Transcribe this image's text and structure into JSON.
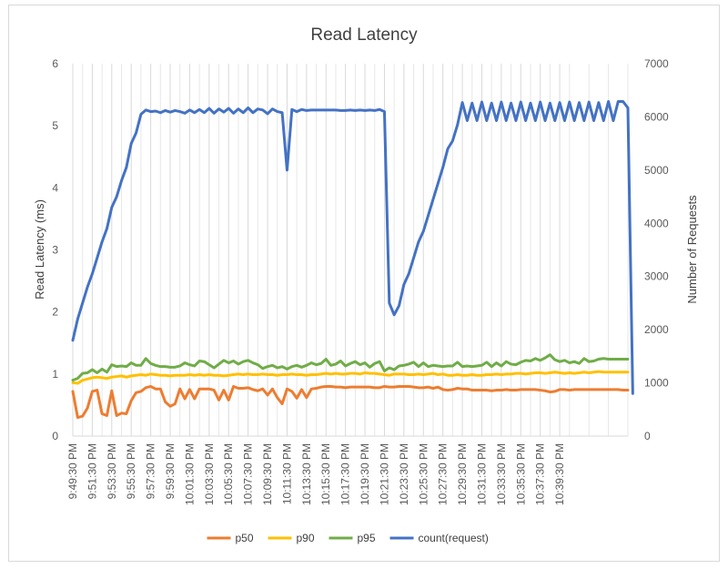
{
  "chart_data": {
    "type": "line",
    "title": "Read Latency",
    "y_label_left": "Read Latency (ms)",
    "y_label_right": "Number of Requests",
    "y_left_range": [
      0,
      6
    ],
    "y_left_ticks": [
      "0",
      "1",
      "2",
      "3",
      "4",
      "5",
      "6"
    ],
    "y_right_range": [
      0,
      7000
    ],
    "y_right_ticks": [
      "0",
      "1000",
      "2000",
      "3000",
      "4000",
      "5000",
      "6000",
      "7000"
    ],
    "x_tick_labels": [
      "9:49:30 PM",
      "9:51:30 PM",
      "9:53:30 PM",
      "9:55:30 PM",
      "9:57:30 PM",
      "9:59:30 PM",
      "10:01:30 PM",
      "10:03:30 PM",
      "10:05:30 PM",
      "10:07:30 PM",
      "10:09:30 PM",
      "10:11:30 PM",
      "10:13:30 PM",
      "10:15:30 PM",
      "10:17:30 PM",
      "10:19:30 PM",
      "10:21:30 PM",
      "10:23:30 PM",
      "10:25:30 PM",
      "10:27:30 PM",
      "10:29:30 PM",
      "10:31:30 PM",
      "10:33:30 PM",
      "10:35:30 PM",
      "10:37:30 PM",
      "10:39:30 PM"
    ],
    "x_interval_seconds": 30,
    "grid": "vertical",
    "legend_position": "bottom",
    "series": [
      {
        "name": "p50",
        "axis": "left",
        "color": "#ED7D31",
        "values": [
          0.72,
          0.3,
          0.32,
          0.45,
          0.72,
          0.74,
          0.36,
          0.33,
          0.73,
          0.33,
          0.37,
          0.36,
          0.57,
          0.7,
          0.72,
          0.78,
          0.8,
          0.76,
          0.76,
          0.55,
          0.48,
          0.52,
          0.76,
          0.6,
          0.75,
          0.6,
          0.76,
          0.76,
          0.76,
          0.74,
          0.58,
          0.74,
          0.58,
          0.8,
          0.77,
          0.77,
          0.78,
          0.75,
          0.73,
          0.76,
          0.66,
          0.76,
          0.62,
          0.52,
          0.76,
          0.72,
          0.61,
          0.75,
          0.62,
          0.76,
          0.77,
          0.79,
          0.8,
          0.8,
          0.79,
          0.79,
          0.78,
          0.79,
          0.79,
          0.79,
          0.79,
          0.79,
          0.78,
          0.78,
          0.8,
          0.79,
          0.79,
          0.8,
          0.8,
          0.8,
          0.79,
          0.78,
          0.78,
          0.79,
          0.77,
          0.79,
          0.75,
          0.74,
          0.75,
          0.77,
          0.76,
          0.76,
          0.74,
          0.74,
          0.74,
          0.74,
          0.73,
          0.74,
          0.74,
          0.75,
          0.74,
          0.74,
          0.75,
          0.75,
          0.75,
          0.75,
          0.74,
          0.73,
          0.71,
          0.72,
          0.75,
          0.75,
          0.74,
          0.75,
          0.75,
          0.75,
          0.75,
          0.75,
          0.75,
          0.75,
          0.75,
          0.75,
          0.75,
          0.74,
          0.74
        ]
      },
      {
        "name": "p90",
        "axis": "left",
        "color": "#FFC000",
        "values": [
          0.86,
          0.85,
          0.9,
          0.92,
          0.94,
          0.95,
          0.94,
          0.93,
          0.95,
          0.96,
          0.97,
          0.95,
          0.97,
          0.98,
          0.99,
          0.98,
          1.0,
          0.99,
          0.98,
          0.98,
          0.97,
          0.98,
          0.98,
          0.98,
          0.99,
          0.98,
          0.99,
          0.98,
          0.99,
          0.98,
          0.98,
          0.97,
          0.98,
          0.99,
          1.0,
          0.99,
          1.0,
          0.99,
          0.99,
          1.0,
          0.99,
          0.99,
          0.98,
          0.99,
          0.99,
          1.0,
          0.99,
          0.99,
          0.98,
          0.99,
          0.99,
          1.0,
          1.01,
          1.0,
          1.01,
          1.0,
          1.0,
          1.01,
          1.01,
          1.0,
          1.02,
          1.01,
          1.01,
          1.0,
          0.99,
          0.98,
          1.0,
          1.0,
          1.0,
          0.99,
          0.99,
          1.0,
          0.99,
          1.0,
          1.01,
          0.99,
          1.0,
          0.98,
          0.98,
          0.99,
          0.98,
          0.98,
          0.99,
          0.98,
          0.98,
          0.99,
          0.99,
          1.0,
          0.99,
          1.0,
          1.0,
          1.01,
          1.01,
          1.0,
          1.01,
          1.02,
          1.02,
          1.01,
          1.02,
          1.03,
          1.02,
          1.01,
          1.02,
          1.01,
          1.02,
          1.03,
          1.02,
          1.03,
          1.04,
          1.03,
          1.03,
          1.03,
          1.03,
          1.03,
          1.03
        ]
      },
      {
        "name": "p95",
        "axis": "left",
        "color": "#70AD47",
        "values": [
          0.9,
          0.93,
          1.01,
          1.02,
          1.07,
          1.02,
          1.08,
          1.03,
          1.15,
          1.12,
          1.13,
          1.12,
          1.18,
          1.14,
          1.14,
          1.25,
          1.17,
          1.14,
          1.12,
          1.12,
          1.11,
          1.11,
          1.13,
          1.18,
          1.15,
          1.13,
          1.21,
          1.2,
          1.15,
          1.1,
          1.16,
          1.22,
          1.18,
          1.21,
          1.16,
          1.2,
          1.22,
          1.18,
          1.15,
          1.09,
          1.12,
          1.14,
          1.1,
          1.12,
          1.08,
          1.12,
          1.14,
          1.11,
          1.14,
          1.18,
          1.15,
          1.17,
          1.24,
          1.14,
          1.16,
          1.21,
          1.13,
          1.17,
          1.2,
          1.15,
          1.18,
          1.11,
          1.17,
          1.2,
          1.05,
          1.1,
          1.07,
          1.13,
          1.14,
          1.16,
          1.19,
          1.12,
          1.18,
          1.12,
          1.14,
          1.13,
          1.12,
          1.13,
          1.13,
          1.19,
          1.12,
          1.13,
          1.12,
          1.13,
          1.14,
          1.19,
          1.12,
          1.18,
          1.13,
          1.2,
          1.16,
          1.15,
          1.19,
          1.22,
          1.21,
          1.25,
          1.22,
          1.26,
          1.31,
          1.23,
          1.2,
          1.22,
          1.18,
          1.2,
          1.17,
          1.25,
          1.2,
          1.21,
          1.24,
          1.25,
          1.24,
          1.24,
          1.24,
          1.24,
          1.24
        ]
      },
      {
        "name": "count(request)",
        "axis": "right",
        "color": "#4472C4",
        "values": [
          1800,
          2200,
          2500,
          2800,
          3050,
          3350,
          3650,
          3900,
          4300,
          4500,
          4800,
          5050,
          5500,
          5700,
          6050,
          6130,
          6100,
          6110,
          6080,
          6120,
          6090,
          6120,
          6100,
          6070,
          6130,
          6080,
          6140,
          6080,
          6160,
          6070,
          6150,
          6090,
          6160,
          6070,
          6150,
          6080,
          6170,
          6080,
          6150,
          6130,
          6060,
          6150,
          6100,
          6080,
          5000,
          6140,
          6100,
          6140,
          6120,
          6130,
          6130,
          6130,
          6130,
          6130,
          6130,
          6120,
          6120,
          6130,
          6120,
          6130,
          6120,
          6130,
          6120,
          6140,
          6100,
          2500,
          2280,
          2450,
          2850,
          3050,
          3350,
          3650,
          3850,
          4150,
          4450,
          4750,
          5050,
          5400,
          5550,
          5850,
          6270,
          5930,
          6260,
          5930,
          6280,
          5930,
          6260,
          5930,
          6280,
          5930,
          6260,
          5930,
          6280,
          5930,
          6260,
          5930,
          6280,
          5930,
          6260,
          5930,
          6270,
          5930,
          6280,
          5930,
          6270,
          5930,
          6280,
          5930,
          6270,
          5930,
          6290,
          5930,
          6290,
          6290,
          6170,
          800
        ]
      }
    ]
  }
}
